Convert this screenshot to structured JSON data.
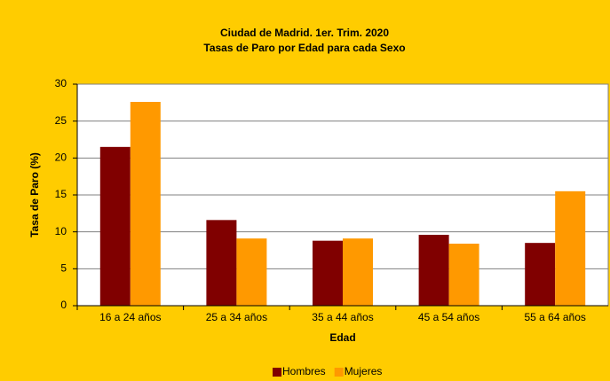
{
  "chart_data": {
    "type": "bar",
    "title": "Ciudad de Madrid. 1er. Trim. 2020",
    "subtitle": "Tasas de Paro por Edad para cada Sexo",
    "x_label": "Edad",
    "y_label": "Tasa de Paro (%)",
    "categories": [
      "16 a 24 años",
      "25 a 34 años",
      "35 a 44 años",
      "45 a 54 años",
      "55 a 64 años"
    ],
    "series": [
      {
        "name": "Hombres",
        "color": "#800000",
        "values": [
          21.5,
          11.6,
          8.8,
          9.6,
          8.5
        ]
      },
      {
        "name": "Mujeres",
        "color": "#ff9900",
        "values": [
          27.6,
          9.1,
          9.1,
          8.4,
          15.5
        ]
      }
    ],
    "ylim": [
      0,
      30
    ],
    "yticks": [
      0,
      5,
      10,
      15,
      20,
      25,
      30
    ],
    "grid": true,
    "legend": "bottom"
  }
}
